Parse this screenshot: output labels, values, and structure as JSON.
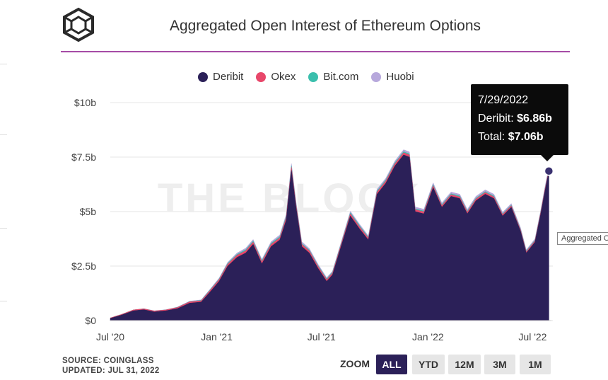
{
  "header": {
    "title": "Aggregated Open Interest of Ethereum Options"
  },
  "logo": {
    "icon": "cube-logo-icon"
  },
  "legend": [
    {
      "name": "Deribit",
      "color": "#2b2058"
    },
    {
      "name": "Okex",
      "color": "#e8476a"
    },
    {
      "name": "Bit.com",
      "color": "#3bbfad"
    },
    {
      "name": "Huobi",
      "color": "#b7a8dc"
    }
  ],
  "watermark": "THE BLOCK",
  "tooltip": {
    "date": "7/29/2022",
    "deribit_label": "Deribit:",
    "deribit_value": "$6.86b",
    "total_label": "Total:",
    "total_value": "$7.06b"
  },
  "side_label": "Aggregated O",
  "footer": {
    "source": "SOURCE: COINGLASS",
    "updated": "UPDATED: JUL 31, 2022"
  },
  "zoom": {
    "label": "ZOOM",
    "buttons": [
      "ALL",
      "YTD",
      "12M",
      "3M",
      "1M"
    ],
    "active": "ALL"
  },
  "chart_data": {
    "type": "area",
    "title": "Aggregated Open Interest of Ethereum Options",
    "xlabel": "",
    "ylabel": "",
    "yticks": [
      "$0",
      "$2.5b",
      "$5b",
      "$7.5b",
      "$10b"
    ],
    "ytick_values": [
      0,
      2.5,
      5,
      7.5,
      10
    ],
    "xticks": [
      "Jul '20",
      "Jan '21",
      "Jul '21",
      "Jan '22",
      "Jul '22"
    ],
    "xtick_dates": [
      "2020-07-01",
      "2021-01-01",
      "2021-07-01",
      "2022-01-01",
      "2022-07-01"
    ],
    "ylim": [
      0,
      10
    ],
    "xlim": [
      "2020-07-01",
      "2022-07-31"
    ],
    "stacked": true,
    "x": [
      "2020-07-01",
      "2020-07-20",
      "2020-08-10",
      "2020-08-28",
      "2020-09-15",
      "2020-10-05",
      "2020-10-25",
      "2020-11-15",
      "2020-12-05",
      "2020-12-20",
      "2021-01-05",
      "2021-01-20",
      "2021-02-05",
      "2021-02-20",
      "2021-03-05",
      "2021-03-20",
      "2021-04-05",
      "2021-04-20",
      "2021-05-01",
      "2021-05-10",
      "2021-05-18",
      "2021-05-28",
      "2021-06-10",
      "2021-06-25",
      "2021-07-10",
      "2021-07-20",
      "2021-08-05",
      "2021-08-20",
      "2021-09-05",
      "2021-09-20",
      "2021-10-05",
      "2021-10-20",
      "2021-11-05",
      "2021-11-20",
      "2021-11-30",
      "2021-12-10",
      "2021-12-25",
      "2022-01-10",
      "2022-01-25",
      "2022-02-10",
      "2022-02-25",
      "2022-03-10",
      "2022-03-25",
      "2022-04-10",
      "2022-04-25",
      "2022-05-10",
      "2022-05-25",
      "2022-06-10",
      "2022-06-20",
      "2022-07-05",
      "2022-07-15",
      "2022-07-22",
      "2022-07-29"
    ],
    "series": [
      {
        "name": "Deribit",
        "color": "#2b2058",
        "values": [
          0.1,
          0.25,
          0.45,
          0.5,
          0.4,
          0.45,
          0.55,
          0.8,
          0.85,
          1.3,
          1.8,
          2.5,
          2.9,
          3.1,
          3.5,
          2.6,
          3.4,
          3.7,
          4.6,
          6.9,
          5.2,
          3.4,
          3.1,
          2.4,
          1.8,
          2.1,
          3.5,
          4.8,
          4.2,
          3.7,
          5.8,
          6.3,
          7.1,
          7.6,
          7.5,
          5.0,
          4.9,
          6.1,
          5.2,
          5.7,
          5.6,
          4.9,
          5.5,
          5.8,
          5.6,
          4.8,
          5.2,
          4.1,
          3.1,
          3.6,
          4.9,
          5.9,
          6.86
        ]
      },
      {
        "name": "Okex",
        "color": "#e8476a",
        "values": [
          0.02,
          0.03,
          0.04,
          0.04,
          0.04,
          0.04,
          0.05,
          0.06,
          0.06,
          0.07,
          0.08,
          0.09,
          0.1,
          0.1,
          0.1,
          0.1,
          0.1,
          0.1,
          0.12,
          0.14,
          0.12,
          0.1,
          0.1,
          0.09,
          0.08,
          0.08,
          0.09,
          0.1,
          0.1,
          0.09,
          0.1,
          0.1,
          0.1,
          0.1,
          0.1,
          0.09,
          0.09,
          0.09,
          0.08,
          0.08,
          0.08,
          0.08,
          0.08,
          0.08,
          0.08,
          0.07,
          0.07,
          0.06,
          0.06,
          0.06,
          0.07,
          0.08,
          0.08
        ]
      },
      {
        "name": "Bit.com",
        "color": "#3bbfad",
        "values": [
          0.0,
          0.0,
          0.0,
          0.0,
          0.0,
          0.0,
          0.01,
          0.01,
          0.02,
          0.03,
          0.03,
          0.04,
          0.04,
          0.05,
          0.05,
          0.05,
          0.05,
          0.05,
          0.06,
          0.06,
          0.05,
          0.04,
          0.04,
          0.04,
          0.04,
          0.04,
          0.04,
          0.05,
          0.05,
          0.04,
          0.05,
          0.05,
          0.05,
          0.05,
          0.05,
          0.04,
          0.04,
          0.05,
          0.04,
          0.04,
          0.04,
          0.04,
          0.04,
          0.04,
          0.04,
          0.03,
          0.03,
          0.03,
          0.03,
          0.03,
          0.03,
          0.03,
          0.03
        ]
      },
      {
        "name": "Huobi",
        "color": "#b7a8dc",
        "values": [
          0.0,
          0.0,
          0.0,
          0.01,
          0.01,
          0.01,
          0.01,
          0.02,
          0.02,
          0.03,
          0.04,
          0.05,
          0.06,
          0.07,
          0.07,
          0.06,
          0.07,
          0.08,
          0.09,
          0.1,
          0.09,
          0.08,
          0.07,
          0.06,
          0.05,
          0.05,
          0.06,
          0.07,
          0.07,
          0.06,
          0.08,
          0.08,
          0.08,
          0.09,
          0.09,
          0.08,
          0.08,
          0.08,
          0.08,
          0.08,
          0.08,
          0.08,
          0.08,
          0.08,
          0.08,
          0.07,
          0.07,
          0.07,
          0.06,
          0.06,
          0.07,
          0.08,
          0.09
        ]
      }
    ],
    "highlight": {
      "x": "2022-07-29",
      "y": 6.86
    },
    "grid": true,
    "legend_position": "top"
  }
}
